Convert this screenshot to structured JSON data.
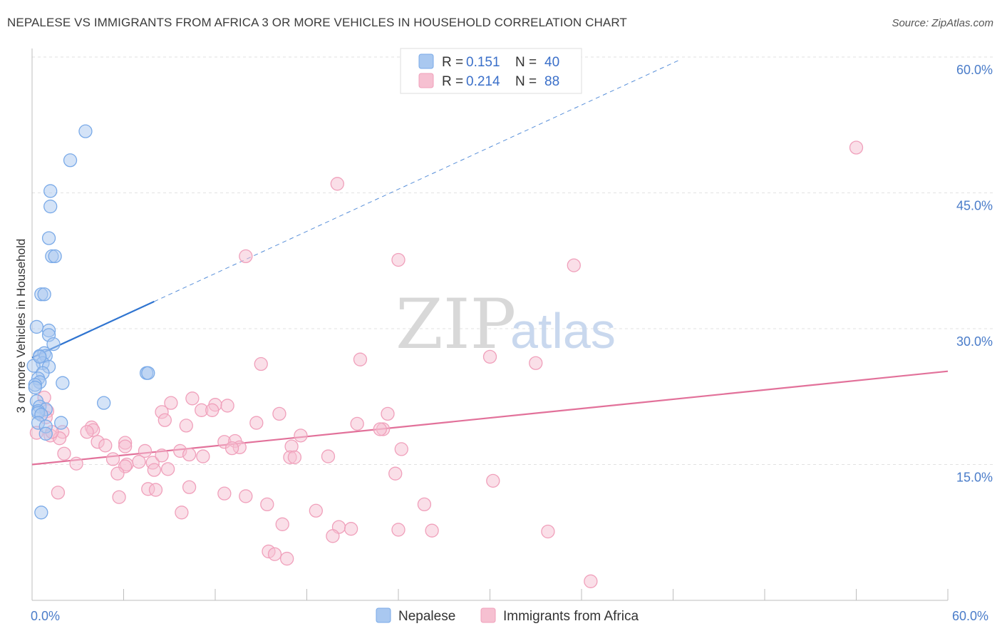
{
  "title": "NEPALESE VS IMMIGRANTS FROM AFRICA 3 OR MORE VEHICLES IN HOUSEHOLD CORRELATION CHART",
  "source": "Source: ZipAtlas.com",
  "chart_data": {
    "type": "scatter",
    "title": "NEPALESE VS IMMIGRANTS FROM AFRICA 3 OR MORE VEHICLES IN HOUSEHOLD CORRELATION CHART",
    "ylabel": "3 or more Vehicles in Household",
    "xlabel": "",
    "xlim": [
      0,
      60
    ],
    "ylim": [
      0,
      60
    ],
    "x_tick_labels": [
      "0.0%",
      "60.0%"
    ],
    "y_ticks": [
      15,
      30,
      45,
      60
    ],
    "y_tick_labels": [
      "15.0%",
      "30.0%",
      "45.0%",
      "60.0%"
    ],
    "grid": true,
    "legend_position": "top-center",
    "watermark": {
      "zip": "ZIP",
      "atlas": "atlas"
    },
    "legend": {
      "r_label": "R =",
      "n_label": "N =",
      "rows": [
        {
          "r": "0.151",
          "n": "40"
        },
        {
          "r": "0.214",
          "n": "88"
        }
      ]
    },
    "series": [
      {
        "name": "Nepalese",
        "color": "#7aaae8",
        "fill": "#a9c8f0",
        "line_color": "#2f74d0",
        "trend": {
          "x0": 0,
          "y0": 26.8,
          "x1": 8,
          "y1": 33.0,
          "dashed_to_x": 42.5
        },
        "points": [
          [
            3.5,
            51.8
          ],
          [
            2.5,
            48.6
          ],
          [
            1.2,
            45.2
          ],
          [
            1.2,
            43.5
          ],
          [
            1.1,
            40.0
          ],
          [
            1.3,
            38.0
          ],
          [
            1.5,
            38.0
          ],
          [
            0.6,
            33.8
          ],
          [
            0.8,
            33.8
          ],
          [
            0.3,
            30.2
          ],
          [
            1.1,
            29.8
          ],
          [
            1.1,
            29.3
          ],
          [
            1.4,
            28.3
          ],
          [
            0.5,
            27.0
          ],
          [
            0.8,
            27.3
          ],
          [
            0.9,
            27.0
          ],
          [
            0.7,
            26.2
          ],
          [
            1.1,
            25.8
          ],
          [
            0.1,
            25.9
          ],
          [
            0.7,
            25.1
          ],
          [
            0.4,
            24.5
          ],
          [
            0.5,
            24.1
          ],
          [
            2.0,
            24.0
          ],
          [
            0.2,
            23.8
          ],
          [
            0.2,
            23.5
          ],
          [
            7.5,
            25.1
          ],
          [
            7.6,
            25.1
          ],
          [
            0.3,
            22.0
          ],
          [
            0.5,
            21.4
          ],
          [
            0.9,
            21.1
          ],
          [
            0.4,
            20.9
          ],
          [
            0.4,
            20.7
          ],
          [
            0.6,
            20.5
          ],
          [
            4.7,
            21.8
          ],
          [
            0.4,
            19.6
          ],
          [
            0.9,
            19.2
          ],
          [
            1.9,
            19.6
          ],
          [
            0.9,
            18.4
          ],
          [
            0.6,
            9.7
          ],
          [
            0.5,
            26.9
          ]
        ]
      },
      {
        "name": "Immigrants from Africa",
        "color": "#f0a0bb",
        "fill": "#f6c0d1",
        "line_color": "#e2719a",
        "trend": {
          "x0": 0,
          "y0": 15.0,
          "x1": 60,
          "y1": 25.3
        },
        "points": [
          [
            54.0,
            50.0
          ],
          [
            20.0,
            46.0
          ],
          [
            14.0,
            38.0
          ],
          [
            24.0,
            37.6
          ],
          [
            35.5,
            37.0
          ],
          [
            21.5,
            26.6
          ],
          [
            30.0,
            26.9
          ],
          [
            15.0,
            26.1
          ],
          [
            33.0,
            26.2
          ],
          [
            0.8,
            22.4
          ],
          [
            9.1,
            21.8
          ],
          [
            10.5,
            22.3
          ],
          [
            12.0,
            21.6
          ],
          [
            12.8,
            21.5
          ],
          [
            11.1,
            21.0
          ],
          [
            11.8,
            21.0
          ],
          [
            1.0,
            20.9
          ],
          [
            8.5,
            20.8
          ],
          [
            16.2,
            20.6
          ],
          [
            23.3,
            20.6
          ],
          [
            8.7,
            19.9
          ],
          [
            14.7,
            19.6
          ],
          [
            10.1,
            19.3
          ],
          [
            3.9,
            19.1
          ],
          [
            4.0,
            18.8
          ],
          [
            21.3,
            19.5
          ],
          [
            23.0,
            18.9
          ],
          [
            0.3,
            18.5
          ],
          [
            2.0,
            18.6
          ],
          [
            1.2,
            18.2
          ],
          [
            3.6,
            18.6
          ],
          [
            17.6,
            18.2
          ],
          [
            1.8,
            17.9
          ],
          [
            4.3,
            17.5
          ],
          [
            6.1,
            17.4
          ],
          [
            12.6,
            17.5
          ],
          [
            13.3,
            17.6
          ],
          [
            17.0,
            17.0
          ],
          [
            4.8,
            17.1
          ],
          [
            6.1,
            17.0
          ],
          [
            13.6,
            16.9
          ],
          [
            13.1,
            16.8
          ],
          [
            24.2,
            16.7
          ],
          [
            9.7,
            16.5
          ],
          [
            7.4,
            16.5
          ],
          [
            2.1,
            16.2
          ],
          [
            10.3,
            16.1
          ],
          [
            11.2,
            15.9
          ],
          [
            16.9,
            15.8
          ],
          [
            19.4,
            15.9
          ],
          [
            5.3,
            15.6
          ],
          [
            17.2,
            15.8
          ],
          [
            7.0,
            15.3
          ],
          [
            7.9,
            15.2
          ],
          [
            6.2,
            15.0
          ],
          [
            6.1,
            14.8
          ],
          [
            8.0,
            14.4
          ],
          [
            8.9,
            14.5
          ],
          [
            2.9,
            15.1
          ],
          [
            5.6,
            14.0
          ],
          [
            23.8,
            14.0
          ],
          [
            30.2,
            13.2
          ],
          [
            1.7,
            11.9
          ],
          [
            10.3,
            12.5
          ],
          [
            7.6,
            12.3
          ],
          [
            8.1,
            12.2
          ],
          [
            12.6,
            11.8
          ],
          [
            14.0,
            11.5
          ],
          [
            5.7,
            11.4
          ],
          [
            15.4,
            10.6
          ],
          [
            25.7,
            10.6
          ],
          [
            18.6,
            9.9
          ],
          [
            9.8,
            9.7
          ],
          [
            16.4,
            8.4
          ],
          [
            20.1,
            8.1
          ],
          [
            20.9,
            7.9
          ],
          [
            24.0,
            7.8
          ],
          [
            26.2,
            7.7
          ],
          [
            33.8,
            7.6
          ],
          [
            19.7,
            7.1
          ],
          [
            15.5,
            5.4
          ],
          [
            15.9,
            5.1
          ],
          [
            16.7,
            4.6
          ],
          [
            36.6,
            2.1
          ],
          [
            22.8,
            18.9
          ],
          [
            0.9,
            20.2
          ],
          [
            1.3,
            18.6
          ],
          [
            8.5,
            16.0
          ]
        ]
      }
    ]
  }
}
